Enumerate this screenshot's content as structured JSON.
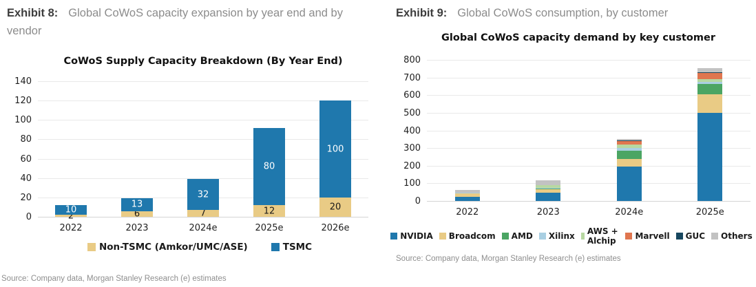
{
  "left_panel": {
    "exhibit_label": "Exhibit 8:",
    "exhibit_title": "Global CoWoS capacity expansion by year end and by vendor",
    "source": "Source: Company data, Morgan Stanley Research (e) estimates"
  },
  "right_panel": {
    "exhibit_label": "Exhibit 9:",
    "exhibit_title": "Global CoWoS consumption, by customer",
    "source": "Source: Company data, Morgan Stanley Research (e) estimates"
  },
  "chart_data": [
    {
      "id": "supply",
      "type": "bar",
      "stacked": true,
      "title": "CoWoS Supply Capacity Breakdown (By Year End)",
      "categories": [
        "2022",
        "2023",
        "2024e",
        "2025e",
        "2026e"
      ],
      "series": [
        {
          "name": "Non-TSMC (Amkor/UMC/ASE)",
          "color": "#e9cb85",
          "label_color": "#1a1a1a",
          "values": [
            2,
            6,
            7,
            12,
            20
          ]
        },
        {
          "name": "TSMC",
          "color": "#1f78ad",
          "label_color": "#ffffff",
          "values": [
            10,
            13,
            32,
            80,
            100
          ]
        }
      ],
      "ylim": [
        0,
        140
      ],
      "ytick_step": 20,
      "grid": true,
      "data_labels": true,
      "legend_position": "bottom"
    },
    {
      "id": "demand",
      "type": "bar",
      "stacked": true,
      "title": "Global CoWoS capacity demand by key customer",
      "categories": [
        "2022",
        "2023",
        "2024e",
        "2025e"
      ],
      "series": [
        {
          "name": "NVIDIA",
          "color": "#1f78ad",
          "values": [
            25,
            45,
            195,
            500
          ]
        },
        {
          "name": "Broadcom",
          "color": "#e9cb85",
          "values": [
            20,
            22,
            45,
            105
          ]
        },
        {
          "name": "AMD",
          "color": "#4ba563",
          "values": [
            0,
            4,
            45,
            60
          ]
        },
        {
          "name": "Xilinx",
          "color": "#a9cfe2",
          "values": [
            3,
            4,
            15,
            10
          ]
        },
        {
          "name": "AWS + Alchip",
          "color": "#b7d8a1",
          "values": [
            0,
            13,
            20,
            15
          ]
        },
        {
          "name": "Marvell",
          "color": "#e0764f",
          "values": [
            0,
            0,
            20,
            35
          ]
        },
        {
          "name": "GUC",
          "color": "#17475f",
          "values": [
            0,
            0,
            3,
            5
          ]
        },
        {
          "name": "Others",
          "color": "#c2c2c2",
          "values": [
            15,
            28,
            10,
            25
          ]
        }
      ],
      "ylim": [
        0,
        800
      ],
      "ytick_step": 100,
      "grid": true,
      "data_labels": false,
      "legend_position": "bottom"
    }
  ]
}
